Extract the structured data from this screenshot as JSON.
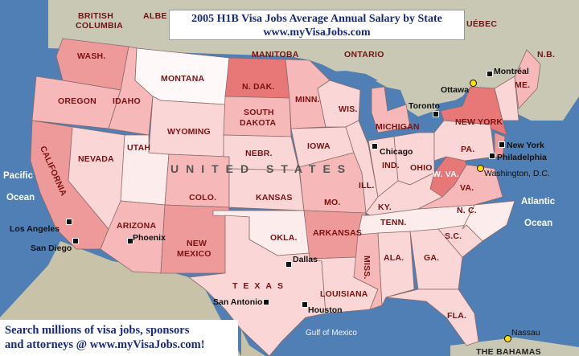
{
  "title": {
    "line1": "2005 H1B Visa Jobs Average Annual Salary by State",
    "line2": "www.myVisaJobs.com"
  },
  "footer": {
    "line1": "Search millions of visa jobs, sponsors",
    "line2": "and attorneys @ www.myVisaJobs.com!"
  },
  "country_label": "UNITED STATES",
  "regions": {
    "british_columbia_1": "BRITISH",
    "british_columbia_2": "COLUMBIA",
    "alberta": "ALBE",
    "manitoba": "MANITOBA",
    "ontario": "ONTARIO",
    "quebec": "UÉBEC",
    "nb": "N.B.",
    "bahamas": "THE BAHAMAS"
  },
  "states": {
    "wash": "WASH.",
    "oregon": "OREGON",
    "idaho": "IDAHO",
    "california": "CALIFORNIA",
    "nevada": "NEVADA",
    "utah": "UTAH",
    "arizona": "ARIZONA",
    "montana": "MONTANA",
    "wyoming": "WYOMING",
    "colo": "COLO.",
    "new_mexico_1": "NEW",
    "new_mexico_2": "MEXICO",
    "n_dak": "N. DAK.",
    "south_dakota_1": "SOUTH",
    "south_dakota_2": "DAKOTA",
    "nebr": "NEBR.",
    "kansas": "KANSAS",
    "okla": "OKLA.",
    "texas": "TEXAS",
    "minn": "MINN.",
    "iowa": "IOWA",
    "mo": "MO.",
    "arkansas": "ARKANSAS",
    "louisiana": "LOUISIANA",
    "wis": "WIS.",
    "ill": "ILL.",
    "miss": "MISS.",
    "michigan": "MICHIGAN",
    "ind": "IND.",
    "ohio": "OHIO",
    "ky": "KY.",
    "tenn": "TENN.",
    "ala": "ALA.",
    "ga": "GA.",
    "fla": "FLA.",
    "sc": "S.C.",
    "nc": "N. C.",
    "va": "VA.",
    "w_va": "W. VA.",
    "pa": "PA.",
    "new_york": "NEW YORK",
    "me": "ME."
  },
  "cities": {
    "ottawa": "Ottawa",
    "montreal": "Montréal",
    "toronto": "Toronto",
    "chicago": "Chicago",
    "new_york": "New York",
    "philadelphia": "Philadelphia",
    "washington": "Washington, D.C.",
    "los_angeles": "Los Angeles",
    "san_diego": "San Diego",
    "phoenix": "Phoenix",
    "dallas": "Dallas",
    "san_antonio": "San Antonio",
    "houston": "Houston",
    "nassau": "Nassau"
  },
  "water": {
    "pacific_1": "Pacific",
    "pacific_2": "Ocean",
    "atlantic_1": "Atlantic",
    "atlantic_2": "Ocean",
    "gulf": "Gulf of Mexico"
  },
  "colors": {
    "ocean": "#4f7fb4",
    "canada": "#c8c8b4",
    "mexico": "#c8c2a8",
    "state_darkest": "#e87878",
    "state_dark": "#ef9a9a",
    "state_medium": "#f6b8b8",
    "state_light": "#fbd6d6",
    "state_lightest": "#fdecec",
    "state_white": "#fff8f8"
  }
}
